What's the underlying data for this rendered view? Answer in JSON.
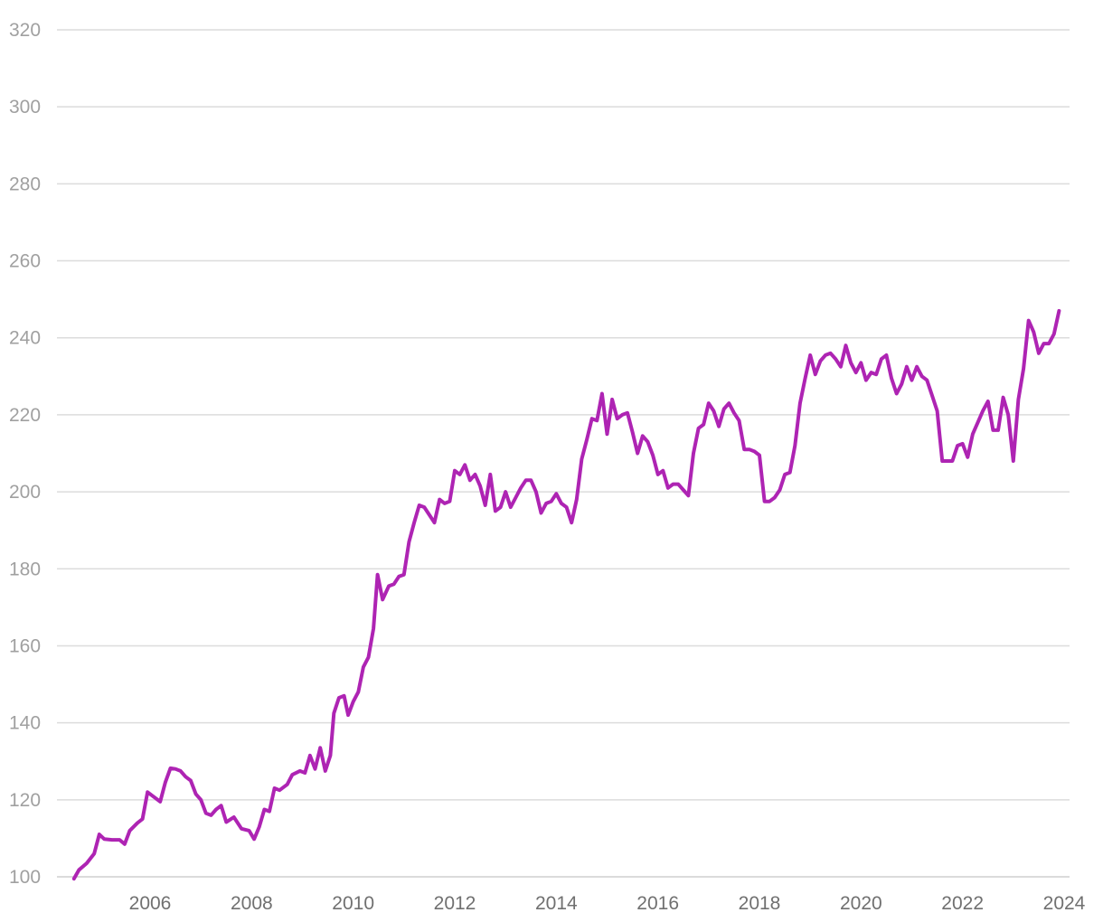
{
  "chart_data": {
    "type": "line",
    "title": "",
    "xlabel": "",
    "ylabel": "",
    "x_axis": {
      "min": 2004.25,
      "max": 2024,
      "ticks": [
        2006,
        2008,
        2010,
        2012,
        2014,
        2016,
        2018,
        2020,
        2022,
        2024
      ],
      "tick_labels": [
        "2006",
        "2008",
        "2010",
        "2012",
        "2014",
        "2016",
        "2018",
        "2020",
        "2022",
        "2024"
      ]
    },
    "y_axis": {
      "min": 100,
      "max": 320,
      "ticks": [
        100,
        120,
        140,
        160,
        180,
        200,
        220,
        240,
        260,
        280,
        300,
        320
      ],
      "tick_labels": [
        "100",
        "120",
        "140",
        "160",
        "180",
        "200",
        "220",
        "240",
        "260",
        "280",
        "300",
        "320"
      ]
    },
    "grid": true,
    "legend": "none",
    "series": [
      {
        "color": "#ae24b3",
        "points": [
          [
            2004.5,
            99.5
          ],
          [
            2004.6,
            101.8
          ],
          [
            2004.75,
            103.5
          ],
          [
            2004.9,
            106.0
          ],
          [
            2005.0,
            111.0
          ],
          [
            2005.1,
            109.8
          ],
          [
            2005.25,
            109.6
          ],
          [
            2005.4,
            109.6
          ],
          [
            2005.5,
            108.5
          ],
          [
            2005.6,
            112.0
          ],
          [
            2005.75,
            114.0
          ],
          [
            2005.85,
            115.0
          ],
          [
            2005.95,
            122.0
          ],
          [
            2006.05,
            121.0
          ],
          [
            2006.2,
            119.5
          ],
          [
            2006.3,
            124.5
          ],
          [
            2006.4,
            128.2
          ],
          [
            2006.5,
            128.0
          ],
          [
            2006.6,
            127.5
          ],
          [
            2006.7,
            126.0
          ],
          [
            2006.8,
            125.0
          ],
          [
            2006.9,
            121.5
          ],
          [
            2007.0,
            120.0
          ],
          [
            2007.1,
            116.5
          ],
          [
            2007.2,
            116.0
          ],
          [
            2007.3,
            117.5
          ],
          [
            2007.4,
            118.5
          ],
          [
            2007.5,
            114.2
          ],
          [
            2007.65,
            115.5
          ],
          [
            2007.8,
            112.5
          ],
          [
            2007.95,
            112.0
          ],
          [
            2008.05,
            109.8
          ],
          [
            2008.15,
            113.0
          ],
          [
            2008.25,
            117.5
          ],
          [
            2008.35,
            117.0
          ],
          [
            2008.45,
            123.0
          ],
          [
            2008.55,
            122.5
          ],
          [
            2008.7,
            124.0
          ],
          [
            2008.8,
            126.5
          ],
          [
            2008.95,
            127.5
          ],
          [
            2009.05,
            127.0
          ],
          [
            2009.15,
            131.5
          ],
          [
            2009.25,
            128.0
          ],
          [
            2009.35,
            133.5
          ],
          [
            2009.45,
            127.5
          ],
          [
            2009.55,
            131.5
          ],
          [
            2009.62,
            142.5
          ],
          [
            2009.72,
            146.5
          ],
          [
            2009.82,
            147.0
          ],
          [
            2009.9,
            142.0
          ],
          [
            2010.0,
            145.5
          ],
          [
            2010.1,
            148.0
          ],
          [
            2010.2,
            154.5
          ],
          [
            2010.3,
            157.0
          ],
          [
            2010.4,
            164.5
          ],
          [
            2010.48,
            178.5
          ],
          [
            2010.58,
            172.0
          ],
          [
            2010.7,
            175.5
          ],
          [
            2010.8,
            176.0
          ],
          [
            2010.9,
            178.0
          ],
          [
            2011.0,
            178.5
          ],
          [
            2011.1,
            187.0
          ],
          [
            2011.2,
            192.0
          ],
          [
            2011.3,
            196.5
          ],
          [
            2011.4,
            196.0
          ],
          [
            2011.5,
            194.0
          ],
          [
            2011.6,
            192.0
          ],
          [
            2011.7,
            198.0
          ],
          [
            2011.8,
            197.0
          ],
          [
            2011.9,
            197.5
          ],
          [
            2012.0,
            205.5
          ],
          [
            2012.1,
            204.5
          ],
          [
            2012.2,
            207.0
          ],
          [
            2012.3,
            203.0
          ],
          [
            2012.4,
            204.5
          ],
          [
            2012.5,
            201.5
          ],
          [
            2012.6,
            196.5
          ],
          [
            2012.7,
            204.5
          ],
          [
            2012.8,
            195.0
          ],
          [
            2012.9,
            196.0
          ],
          [
            2013.0,
            200.0
          ],
          [
            2013.1,
            196.0
          ],
          [
            2013.2,
            198.5
          ],
          [
            2013.3,
            201.0
          ],
          [
            2013.4,
            203.0
          ],
          [
            2013.5,
            203.0
          ],
          [
            2013.6,
            200.0
          ],
          [
            2013.7,
            194.5
          ],
          [
            2013.8,
            197.0
          ],
          [
            2013.9,
            197.5
          ],
          [
            2014.0,
            199.5
          ],
          [
            2014.1,
            197.0
          ],
          [
            2014.2,
            196.0
          ],
          [
            2014.3,
            192.0
          ],
          [
            2014.4,
            198.0
          ],
          [
            2014.5,
            208.5
          ],
          [
            2014.6,
            213.5
          ],
          [
            2014.7,
            219.0
          ],
          [
            2014.8,
            218.5
          ],
          [
            2014.9,
            225.5
          ],
          [
            2015.0,
            215.0
          ],
          [
            2015.1,
            224.0
          ],
          [
            2015.2,
            219.0
          ],
          [
            2015.3,
            220.0
          ],
          [
            2015.4,
            220.5
          ],
          [
            2015.5,
            215.5
          ],
          [
            2015.6,
            210.0
          ],
          [
            2015.7,
            214.5
          ],
          [
            2015.8,
            213.0
          ],
          [
            2015.9,
            209.5
          ],
          [
            2016.0,
            204.5
          ],
          [
            2016.1,
            205.5
          ],
          [
            2016.2,
            201.0
          ],
          [
            2016.3,
            202.0
          ],
          [
            2016.4,
            202.0
          ],
          [
            2016.5,
            200.5
          ],
          [
            2016.6,
            199.0
          ],
          [
            2016.7,
            210.0
          ],
          [
            2016.8,
            216.5
          ],
          [
            2016.9,
            217.5
          ],
          [
            2017.0,
            223.0
          ],
          [
            2017.1,
            221.0
          ],
          [
            2017.2,
            217.0
          ],
          [
            2017.3,
            221.5
          ],
          [
            2017.4,
            223.0
          ],
          [
            2017.5,
            220.5
          ],
          [
            2017.6,
            218.5
          ],
          [
            2017.7,
            211.0
          ],
          [
            2017.8,
            211.0
          ],
          [
            2017.9,
            210.5
          ],
          [
            2018.0,
            209.5
          ],
          [
            2018.1,
            197.5
          ],
          [
            2018.2,
            197.5
          ],
          [
            2018.3,
            198.5
          ],
          [
            2018.4,
            200.5
          ],
          [
            2018.5,
            204.5
          ],
          [
            2018.6,
            205.0
          ],
          [
            2018.7,
            212.0
          ],
          [
            2018.8,
            223.0
          ],
          [
            2018.9,
            229.5
          ],
          [
            2019.0,
            235.5
          ],
          [
            2019.1,
            230.5
          ],
          [
            2019.2,
            234.0
          ],
          [
            2019.3,
            235.5
          ],
          [
            2019.4,
            236.0
          ],
          [
            2019.5,
            234.5
          ],
          [
            2019.6,
            232.5
          ],
          [
            2019.7,
            238.0
          ],
          [
            2019.8,
            233.5
          ],
          [
            2019.9,
            231.0
          ],
          [
            2020.0,
            233.5
          ],
          [
            2020.1,
            229.0
          ],
          [
            2020.2,
            231.0
          ],
          [
            2020.3,
            230.5
          ],
          [
            2020.4,
            234.5
          ],
          [
            2020.5,
            235.5
          ],
          [
            2020.6,
            229.5
          ],
          [
            2020.7,
            225.5
          ],
          [
            2020.8,
            228.0
          ],
          [
            2020.9,
            232.5
          ],
          [
            2021.0,
            229.0
          ],
          [
            2021.1,
            232.5
          ],
          [
            2021.2,
            230.0
          ],
          [
            2021.3,
            229.0
          ],
          [
            2021.4,
            225.0
          ],
          [
            2021.5,
            221.0
          ],
          [
            2021.6,
            208.0
          ],
          [
            2021.7,
            208.0
          ],
          [
            2021.8,
            208.0
          ],
          [
            2021.9,
            212.0
          ],
          [
            2022.0,
            212.5
          ],
          [
            2022.1,
            209.0
          ],
          [
            2022.2,
            215.0
          ],
          [
            2022.3,
            218.0
          ],
          [
            2022.4,
            221.0
          ],
          [
            2022.5,
            223.5
          ],
          [
            2022.6,
            216.0
          ],
          [
            2022.7,
            216.0
          ],
          [
            2022.8,
            224.5
          ],
          [
            2022.9,
            220.0
          ],
          [
            2023.0,
            208.0
          ],
          [
            2023.1,
            224.0
          ],
          [
            2023.2,
            232.0
          ],
          [
            2023.3,
            244.5
          ],
          [
            2023.4,
            241.5
          ],
          [
            2023.5,
            236.0
          ],
          [
            2023.6,
            238.5
          ],
          [
            2023.7,
            238.5
          ],
          [
            2023.8,
            241.0
          ],
          [
            2023.9,
            247.0
          ]
        ]
      }
    ]
  }
}
